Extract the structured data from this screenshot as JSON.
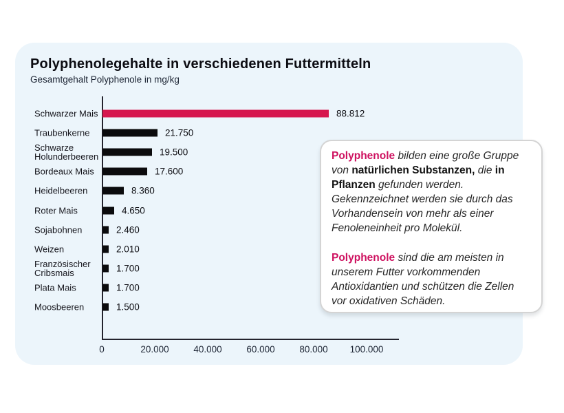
{
  "page": {
    "background": "#ffffff",
    "panel_bg": "#ecf5fb"
  },
  "chart_data": {
    "type": "bar",
    "orientation": "horizontal",
    "title": "Polyphenolegehalte in verschiedenen Futtermitteln",
    "subtitle": "Gesamtgehalt Polyphenole in mg/kg",
    "xlabel": "",
    "ylabel": "",
    "xlim": [
      0,
      100000
    ],
    "grid": false,
    "legend": "none",
    "categories": [
      "Schwarzer Mais",
      "Traubenkerne",
      "Schwarze Holunderbeeren",
      "Bordeaux Mais",
      "Heidelbeeren",
      "Roter Mais",
      "Sojabohnen",
      "Weizen",
      "Französischer Cribsmais",
      "Plata Mais",
      "Moosbeeren"
    ],
    "values": [
      88812,
      21750,
      19500,
      17600,
      8360,
      4650,
      2460,
      2010,
      1700,
      1700,
      1500
    ],
    "value_labels": [
      "88.812",
      "21.750",
      "19.500",
      "17.600",
      "8.360",
      "4.650",
      "2.460",
      "2.010",
      "1.700",
      "1.700",
      "1.500"
    ],
    "xticks": {
      "values": [
        0,
        20000,
        40000,
        60000,
        80000,
        100000
      ],
      "labels": [
        "0",
        "20.000",
        "40.000",
        "60.000",
        "80.000",
        "100.000"
      ]
    },
    "bar_color": "#0b0b0d",
    "highlight": {
      "index": 0,
      "color": "#d6164e"
    },
    "axis_color": "#23232d"
  },
  "infobox": {
    "brand_color": "#ce1260",
    "paragraphs": [
      {
        "segments": [
          {
            "text": "Polyphenole",
            "style": "brand"
          },
          {
            "text": " bilden eine große Gruppe von ",
            "style": "italic"
          },
          {
            "text": "natürlichen Substanzen,",
            "style": "bold"
          },
          {
            "text": " die ",
            "style": "italic"
          },
          {
            "text": "in Pflanzen",
            "style": "bold"
          },
          {
            "text": " gefunden werden. Gekennzeichnet werden sie durch das Vorhandensein von mehr als einer Fenoleneinheit pro Molekül.",
            "style": "italic"
          }
        ]
      },
      {
        "segments": [
          {
            "text": "Polyphenole",
            "style": "brand"
          },
          {
            "text": " sind die am meisten in unserem Futter vorkommenden Antioxidantien und schützen die Zellen vor oxidativen Schäden.",
            "style": "italic"
          }
        ]
      }
    ]
  }
}
